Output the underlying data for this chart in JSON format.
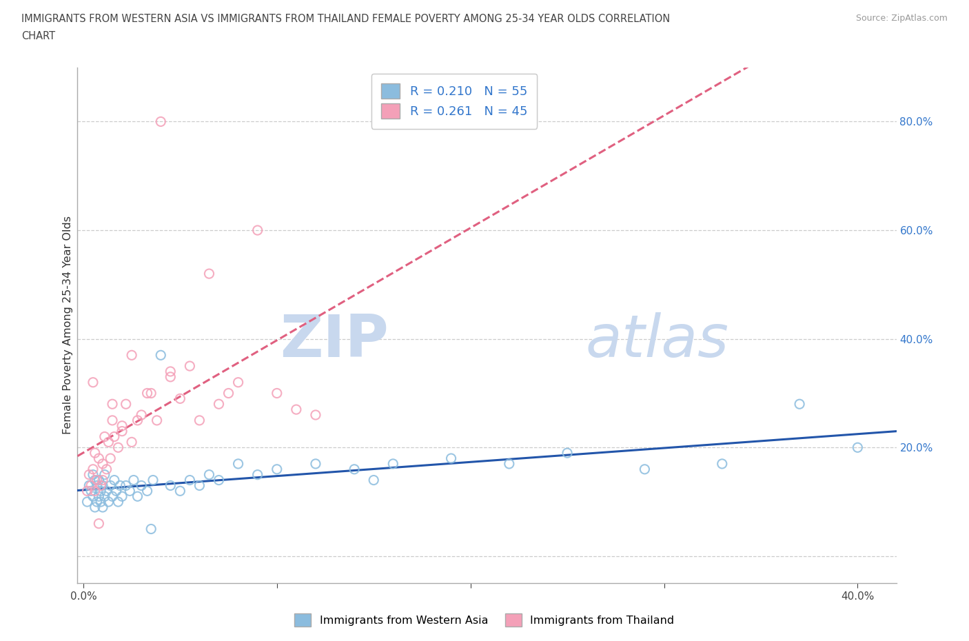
{
  "title_line1": "IMMIGRANTS FROM WESTERN ASIA VS IMMIGRANTS FROM THAILAND FEMALE POVERTY AMONG 25-34 YEAR OLDS CORRELATION",
  "title_line2": "CHART",
  "source": "Source: ZipAtlas.com",
  "ylabel": "Female Poverty Among 25-34 Year Olds",
  "xlim": [
    -0.003,
    0.42
  ],
  "ylim": [
    -0.05,
    0.9
  ],
  "ytick_vals": [
    0.0,
    0.2,
    0.4,
    0.6,
    0.8
  ],
  "ytick_labels": [
    "",
    "20.0%",
    "40.0%",
    "60.0%",
    "80.0%"
  ],
  "xtick_vals": [
    0.0,
    0.1,
    0.2,
    0.3,
    0.4
  ],
  "xtick_labels": [
    "0.0%",
    "",
    "",
    "",
    "40.0%"
  ],
  "legend_entry1": "R = 0.210   N = 55",
  "legend_entry2": "R = 0.261   N = 45",
  "legend_label1": "Immigrants from Western Asia",
  "legend_label2": "Immigrants from Thailand",
  "blue_color": "#8bbcde",
  "pink_color": "#f4a0b8",
  "trend_blue": "#2255aa",
  "trend_pink": "#e06080",
  "watermark_zip": "ZIP",
  "watermark_atlas": "atlas",
  "watermark_color": "#c8d8ee",
  "blue_x": [
    0.002,
    0.003,
    0.004,
    0.005,
    0.005,
    0.006,
    0.006,
    0.007,
    0.007,
    0.008,
    0.008,
    0.009,
    0.009,
    0.01,
    0.01,
    0.011,
    0.011,
    0.012,
    0.013,
    0.014,
    0.015,
    0.016,
    0.017,
    0.018,
    0.019,
    0.02,
    0.022,
    0.024,
    0.026,
    0.028,
    0.03,
    0.033,
    0.036,
    0.04,
    0.045,
    0.05,
    0.055,
    0.06,
    0.065,
    0.07,
    0.08,
    0.09,
    0.1,
    0.12,
    0.14,
    0.16,
    0.19,
    0.22,
    0.25,
    0.29,
    0.33,
    0.37,
    0.4,
    0.035,
    0.15
  ],
  "blue_y": [
    0.1,
    0.13,
    0.12,
    0.11,
    0.15,
    0.09,
    0.14,
    0.1,
    0.13,
    0.11,
    0.14,
    0.1,
    0.12,
    0.09,
    0.13,
    0.11,
    0.15,
    0.12,
    0.1,
    0.13,
    0.11,
    0.14,
    0.12,
    0.1,
    0.13,
    0.11,
    0.13,
    0.12,
    0.14,
    0.11,
    0.13,
    0.12,
    0.14,
    0.37,
    0.13,
    0.12,
    0.14,
    0.13,
    0.15,
    0.14,
    0.17,
    0.15,
    0.16,
    0.17,
    0.16,
    0.17,
    0.18,
    0.17,
    0.19,
    0.16,
    0.17,
    0.28,
    0.2,
    0.05,
    0.14
  ],
  "pink_x": [
    0.002,
    0.003,
    0.004,
    0.005,
    0.006,
    0.006,
    0.007,
    0.008,
    0.009,
    0.01,
    0.011,
    0.012,
    0.013,
    0.014,
    0.015,
    0.016,
    0.018,
    0.02,
    0.022,
    0.025,
    0.028,
    0.03,
    0.033,
    0.038,
    0.04,
    0.045,
    0.05,
    0.06,
    0.07,
    0.08,
    0.09,
    0.1,
    0.11,
    0.12,
    0.005,
    0.015,
    0.025,
    0.035,
    0.045,
    0.055,
    0.065,
    0.075,
    0.02,
    0.01,
    0.008
  ],
  "pink_y": [
    0.12,
    0.15,
    0.13,
    0.16,
    0.12,
    0.19,
    0.14,
    0.18,
    0.13,
    0.17,
    0.22,
    0.16,
    0.21,
    0.18,
    0.25,
    0.22,
    0.2,
    0.24,
    0.28,
    0.21,
    0.25,
    0.26,
    0.3,
    0.25,
    0.8,
    0.33,
    0.29,
    0.25,
    0.28,
    0.32,
    0.6,
    0.3,
    0.27,
    0.26,
    0.32,
    0.28,
    0.37,
    0.3,
    0.34,
    0.35,
    0.52,
    0.3,
    0.23,
    0.14,
    0.06
  ]
}
